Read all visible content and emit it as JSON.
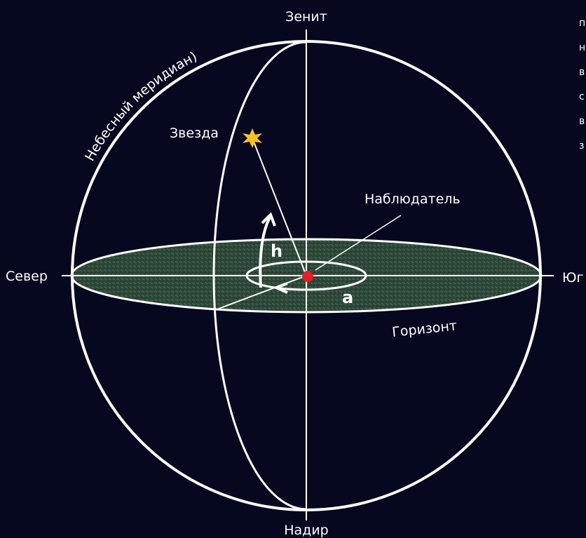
{
  "labels": {
    "zenith": "Зенит",
    "meridian": "Небесный меридиан)",
    "star": "Звезда",
    "observer": "Наблюдатель",
    "altitude": "h",
    "azimuth": "a",
    "north": "Север",
    "south": "Юг",
    "horizon": "Горизонт",
    "nadir": "Надир"
  },
  "side_text_fragments": [
    "п",
    "н",
    "в",
    "с",
    "в",
    "з"
  ]
}
